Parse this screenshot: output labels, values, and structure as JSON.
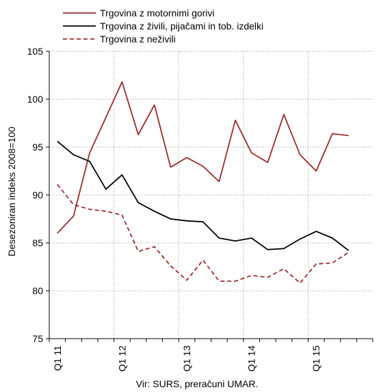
{
  "chart_data": {
    "type": "line",
    "title": "",
    "ylabel": "Desezoniran indeks 2008=100",
    "xlabel": "",
    "source": "Vir: SURS, preračuni UMAR.",
    "ylim": [
      75,
      105
    ],
    "yticks": [
      75,
      80,
      85,
      90,
      95,
      100,
      105
    ],
    "y_grid": true,
    "x_grid": true,
    "legend_position": "top",
    "x": [
      "Q1 11",
      "Q2 11",
      "Q3 11",
      "Q4 11",
      "Q1 12",
      "Q2 12",
      "Q3 12",
      "Q4 12",
      "Q1 13",
      "Q2 13",
      "Q3 13",
      "Q4 13",
      "Q1 14",
      "Q2 14",
      "Q3 14",
      "Q4 14",
      "Q1 15",
      "Q2 15",
      "Q3 15",
      "Q4 15"
    ],
    "xtick_labels": [
      "Q1 11",
      "Q1 12",
      "Q1 13",
      "Q1 14",
      "Q1 15"
    ],
    "series": [
      {
        "name": "Trgovina z motornimi gorivi",
        "color": "#9b2a2b",
        "dash": "solid",
        "values": [
          86.0,
          87.8,
          94.4,
          98.1,
          101.8,
          96.3,
          99.4,
          92.9,
          93.9,
          93.0,
          91.4,
          97.8,
          94.4,
          93.4,
          98.4,
          94.2,
          92.5,
          96.4,
          96.2,
          null
        ]
      },
      {
        "name": "Trgovina z živili, pijačami in tob. izdelki",
        "color": "#000000",
        "dash": "solid",
        "values": [
          95.6,
          94.2,
          93.5,
          90.6,
          92.1,
          89.2,
          88.3,
          87.5,
          87.3,
          87.2,
          85.5,
          85.2,
          85.5,
          84.3,
          84.4,
          85.4,
          86.2,
          85.5,
          84.2,
          null
        ]
      },
      {
        "name": "Trgovina z neživili",
        "color": "#9b2a2b",
        "dash": "dashed",
        "values": [
          91.1,
          89.0,
          88.5,
          88.3,
          87.9,
          84.1,
          84.6,
          82.6,
          81.1,
          83.2,
          81.0,
          81.0,
          81.6,
          81.4,
          82.3,
          80.8,
          82.8,
          82.9,
          84.0,
          null
        ]
      }
    ]
  }
}
